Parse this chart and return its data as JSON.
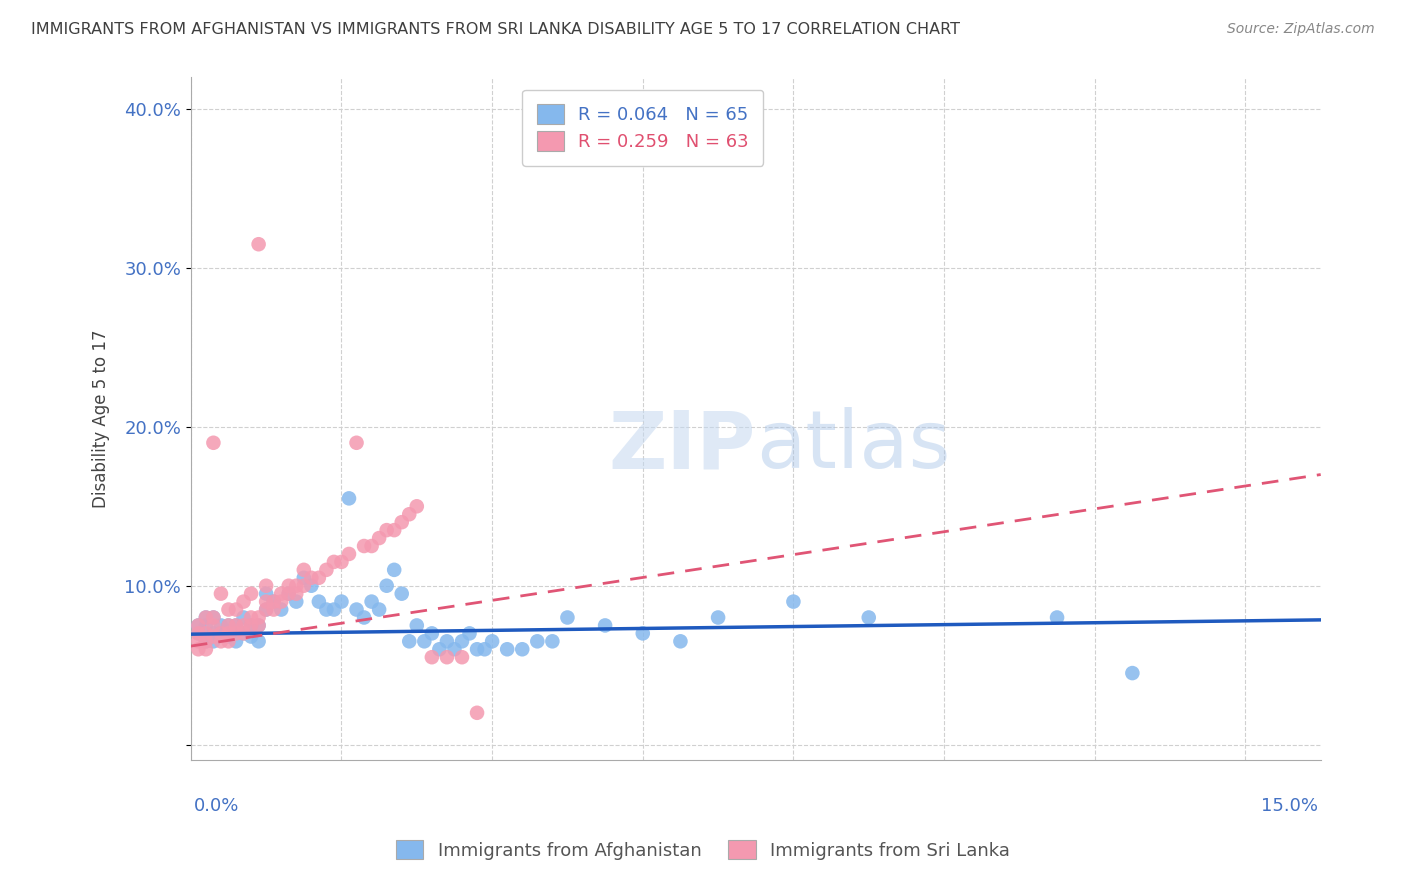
{
  "title": "IMMIGRANTS FROM AFGHANISTAN VS IMMIGRANTS FROM SRI LANKA DISABILITY AGE 5 TO 17 CORRELATION CHART",
  "source": "Source: ZipAtlas.com",
  "ylabel": "Disability Age 5 to 17",
  "xlim": [
    0.0,
    0.15
  ],
  "ylim": [
    -0.01,
    0.42
  ],
  "yticks": [
    0.0,
    0.1,
    0.2,
    0.3,
    0.4
  ],
  "ytick_labels": [
    "",
    "10.0%",
    "20.0%",
    "30.0%",
    "40.0%"
  ],
  "afghanistan_color": "#85b8ed",
  "srilanka_color": "#f499b0",
  "afghanistan_R": 0.064,
  "afghanistan_N": 65,
  "srilanka_R": 0.259,
  "srilanka_N": 63,
  "trend_afghanistan_color": "#1f5abf",
  "trend_srilanka_color": "#e05575",
  "watermark": "ZIPatlas",
  "background_color": "#ffffff",
  "grid_color": "#d0d0d0",
  "axis_label_color": "#4472c4",
  "title_color": "#3f3f3f",
  "afg_trend": [
    0.0695,
    0.0785
  ],
  "sri_trend": [
    0.062,
    0.17
  ],
  "afg_x": [
    0.001,
    0.001,
    0.002,
    0.002,
    0.002,
    0.003,
    0.003,
    0.003,
    0.004,
    0.004,
    0.005,
    0.005,
    0.006,
    0.006,
    0.007,
    0.007,
    0.008,
    0.008,
    0.009,
    0.009,
    0.01,
    0.01,
    0.011,
    0.012,
    0.013,
    0.014,
    0.015,
    0.016,
    0.017,
    0.018,
    0.019,
    0.02,
    0.021,
    0.022,
    0.023,
    0.024,
    0.025,
    0.026,
    0.027,
    0.028,
    0.029,
    0.03,
    0.031,
    0.032,
    0.033,
    0.034,
    0.035,
    0.036,
    0.037,
    0.038,
    0.039,
    0.04,
    0.042,
    0.044,
    0.046,
    0.048,
    0.05,
    0.055,
    0.06,
    0.065,
    0.07,
    0.08,
    0.09,
    0.115,
    0.125
  ],
  "afg_y": [
    0.07,
    0.075,
    0.065,
    0.075,
    0.08,
    0.065,
    0.07,
    0.08,
    0.07,
    0.075,
    0.068,
    0.075,
    0.065,
    0.075,
    0.07,
    0.08,
    0.068,
    0.075,
    0.065,
    0.075,
    0.085,
    0.095,
    0.09,
    0.085,
    0.095,
    0.09,
    0.105,
    0.1,
    0.09,
    0.085,
    0.085,
    0.09,
    0.155,
    0.085,
    0.08,
    0.09,
    0.085,
    0.1,
    0.11,
    0.095,
    0.065,
    0.075,
    0.065,
    0.07,
    0.06,
    0.065,
    0.06,
    0.065,
    0.07,
    0.06,
    0.06,
    0.065,
    0.06,
    0.06,
    0.065,
    0.065,
    0.08,
    0.075,
    0.07,
    0.065,
    0.08,
    0.09,
    0.08,
    0.08,
    0.045
  ],
  "sri_x": [
    0.001,
    0.001,
    0.001,
    0.001,
    0.002,
    0.002,
    0.002,
    0.002,
    0.003,
    0.003,
    0.003,
    0.003,
    0.004,
    0.004,
    0.004,
    0.005,
    0.005,
    0.005,
    0.005,
    0.006,
    0.006,
    0.006,
    0.007,
    0.007,
    0.007,
    0.008,
    0.008,
    0.008,
    0.009,
    0.009,
    0.009,
    0.01,
    0.01,
    0.01,
    0.011,
    0.011,
    0.012,
    0.012,
    0.013,
    0.013,
    0.014,
    0.014,
    0.015,
    0.015,
    0.016,
    0.017,
    0.018,
    0.019,
    0.02,
    0.021,
    0.022,
    0.023,
    0.024,
    0.025,
    0.026,
    0.027,
    0.028,
    0.029,
    0.03,
    0.032,
    0.034,
    0.036,
    0.038
  ],
  "sri_y": [
    0.06,
    0.065,
    0.07,
    0.075,
    0.06,
    0.065,
    0.07,
    0.08,
    0.068,
    0.075,
    0.08,
    0.19,
    0.065,
    0.07,
    0.095,
    0.065,
    0.07,
    0.075,
    0.085,
    0.07,
    0.075,
    0.085,
    0.07,
    0.075,
    0.09,
    0.075,
    0.08,
    0.095,
    0.075,
    0.08,
    0.315,
    0.085,
    0.09,
    0.1,
    0.085,
    0.09,
    0.09,
    0.095,
    0.095,
    0.1,
    0.095,
    0.1,
    0.1,
    0.11,
    0.105,
    0.105,
    0.11,
    0.115,
    0.115,
    0.12,
    0.19,
    0.125,
    0.125,
    0.13,
    0.135,
    0.135,
    0.14,
    0.145,
    0.15,
    0.055,
    0.055,
    0.055,
    0.02
  ]
}
